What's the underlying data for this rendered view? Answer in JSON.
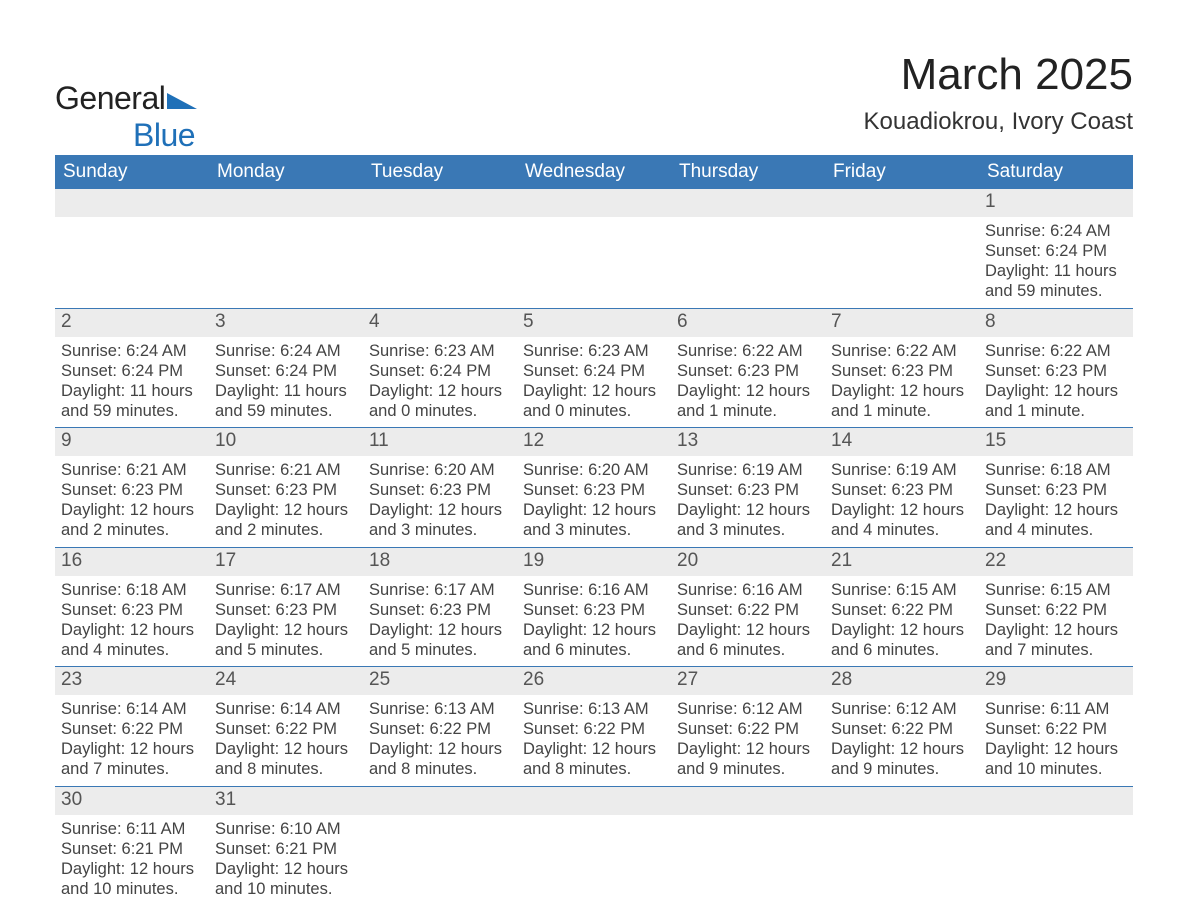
{
  "logo": {
    "word1": "General",
    "word2": "Blue"
  },
  "title": "March 2025",
  "subtitle": "Kouadiokrou, Ivory Coast",
  "colors": {
    "header_bg": "#3a78b5",
    "header_text": "#ffffff",
    "row_separator": "#3a78b5",
    "daynum_bg": "#ececec",
    "body_text": "#444444",
    "logo_blue": "#1f70b8",
    "page_bg": "#ffffff"
  },
  "typography": {
    "title_fontsize": 44,
    "subtitle_fontsize": 24,
    "weekday_fontsize": 19,
    "daynum_fontsize": 19,
    "detail_fontsize": 16.5
  },
  "weekdays": [
    "Sunday",
    "Monday",
    "Tuesday",
    "Wednesday",
    "Thursday",
    "Friday",
    "Saturday"
  ],
  "weeks": [
    [
      null,
      null,
      null,
      null,
      null,
      null,
      {
        "n": "1",
        "sr": "Sunrise: 6:24 AM",
        "ss": "Sunset: 6:24 PM",
        "d1": "Daylight: 11 hours",
        "d2": "and 59 minutes."
      }
    ],
    [
      {
        "n": "2",
        "sr": "Sunrise: 6:24 AM",
        "ss": "Sunset: 6:24 PM",
        "d1": "Daylight: 11 hours",
        "d2": "and 59 minutes."
      },
      {
        "n": "3",
        "sr": "Sunrise: 6:24 AM",
        "ss": "Sunset: 6:24 PM",
        "d1": "Daylight: 11 hours",
        "d2": "and 59 minutes."
      },
      {
        "n": "4",
        "sr": "Sunrise: 6:23 AM",
        "ss": "Sunset: 6:24 PM",
        "d1": "Daylight: 12 hours",
        "d2": "and 0 minutes."
      },
      {
        "n": "5",
        "sr": "Sunrise: 6:23 AM",
        "ss": "Sunset: 6:24 PM",
        "d1": "Daylight: 12 hours",
        "d2": "and 0 minutes."
      },
      {
        "n": "6",
        "sr": "Sunrise: 6:22 AM",
        "ss": "Sunset: 6:23 PM",
        "d1": "Daylight: 12 hours",
        "d2": "and 1 minute."
      },
      {
        "n": "7",
        "sr": "Sunrise: 6:22 AM",
        "ss": "Sunset: 6:23 PM",
        "d1": "Daylight: 12 hours",
        "d2": "and 1 minute."
      },
      {
        "n": "8",
        "sr": "Sunrise: 6:22 AM",
        "ss": "Sunset: 6:23 PM",
        "d1": "Daylight: 12 hours",
        "d2": "and 1 minute."
      }
    ],
    [
      {
        "n": "9",
        "sr": "Sunrise: 6:21 AM",
        "ss": "Sunset: 6:23 PM",
        "d1": "Daylight: 12 hours",
        "d2": "and 2 minutes."
      },
      {
        "n": "10",
        "sr": "Sunrise: 6:21 AM",
        "ss": "Sunset: 6:23 PM",
        "d1": "Daylight: 12 hours",
        "d2": "and 2 minutes."
      },
      {
        "n": "11",
        "sr": "Sunrise: 6:20 AM",
        "ss": "Sunset: 6:23 PM",
        "d1": "Daylight: 12 hours",
        "d2": "and 3 minutes."
      },
      {
        "n": "12",
        "sr": "Sunrise: 6:20 AM",
        "ss": "Sunset: 6:23 PM",
        "d1": "Daylight: 12 hours",
        "d2": "and 3 minutes."
      },
      {
        "n": "13",
        "sr": "Sunrise: 6:19 AM",
        "ss": "Sunset: 6:23 PM",
        "d1": "Daylight: 12 hours",
        "d2": "and 3 minutes."
      },
      {
        "n": "14",
        "sr": "Sunrise: 6:19 AM",
        "ss": "Sunset: 6:23 PM",
        "d1": "Daylight: 12 hours",
        "d2": "and 4 minutes."
      },
      {
        "n": "15",
        "sr": "Sunrise: 6:18 AM",
        "ss": "Sunset: 6:23 PM",
        "d1": "Daylight: 12 hours",
        "d2": "and 4 minutes."
      }
    ],
    [
      {
        "n": "16",
        "sr": "Sunrise: 6:18 AM",
        "ss": "Sunset: 6:23 PM",
        "d1": "Daylight: 12 hours",
        "d2": "and 4 minutes."
      },
      {
        "n": "17",
        "sr": "Sunrise: 6:17 AM",
        "ss": "Sunset: 6:23 PM",
        "d1": "Daylight: 12 hours",
        "d2": "and 5 minutes."
      },
      {
        "n": "18",
        "sr": "Sunrise: 6:17 AM",
        "ss": "Sunset: 6:23 PM",
        "d1": "Daylight: 12 hours",
        "d2": "and 5 minutes."
      },
      {
        "n": "19",
        "sr": "Sunrise: 6:16 AM",
        "ss": "Sunset: 6:23 PM",
        "d1": "Daylight: 12 hours",
        "d2": "and 6 minutes."
      },
      {
        "n": "20",
        "sr": "Sunrise: 6:16 AM",
        "ss": "Sunset: 6:22 PM",
        "d1": "Daylight: 12 hours",
        "d2": "and 6 minutes."
      },
      {
        "n": "21",
        "sr": "Sunrise: 6:15 AM",
        "ss": "Sunset: 6:22 PM",
        "d1": "Daylight: 12 hours",
        "d2": "and 6 minutes."
      },
      {
        "n": "22",
        "sr": "Sunrise: 6:15 AM",
        "ss": "Sunset: 6:22 PM",
        "d1": "Daylight: 12 hours",
        "d2": "and 7 minutes."
      }
    ],
    [
      {
        "n": "23",
        "sr": "Sunrise: 6:14 AM",
        "ss": "Sunset: 6:22 PM",
        "d1": "Daylight: 12 hours",
        "d2": "and 7 minutes."
      },
      {
        "n": "24",
        "sr": "Sunrise: 6:14 AM",
        "ss": "Sunset: 6:22 PM",
        "d1": "Daylight: 12 hours",
        "d2": "and 8 minutes."
      },
      {
        "n": "25",
        "sr": "Sunrise: 6:13 AM",
        "ss": "Sunset: 6:22 PM",
        "d1": "Daylight: 12 hours",
        "d2": "and 8 minutes."
      },
      {
        "n": "26",
        "sr": "Sunrise: 6:13 AM",
        "ss": "Sunset: 6:22 PM",
        "d1": "Daylight: 12 hours",
        "d2": "and 8 minutes."
      },
      {
        "n": "27",
        "sr": "Sunrise: 6:12 AM",
        "ss": "Sunset: 6:22 PM",
        "d1": "Daylight: 12 hours",
        "d2": "and 9 minutes."
      },
      {
        "n": "28",
        "sr": "Sunrise: 6:12 AM",
        "ss": "Sunset: 6:22 PM",
        "d1": "Daylight: 12 hours",
        "d2": "and 9 minutes."
      },
      {
        "n": "29",
        "sr": "Sunrise: 6:11 AM",
        "ss": "Sunset: 6:22 PM",
        "d1": "Daylight: 12 hours",
        "d2": "and 10 minutes."
      }
    ],
    [
      {
        "n": "30",
        "sr": "Sunrise: 6:11 AM",
        "ss": "Sunset: 6:21 PM",
        "d1": "Daylight: 12 hours",
        "d2": "and 10 minutes."
      },
      {
        "n": "31",
        "sr": "Sunrise: 6:10 AM",
        "ss": "Sunset: 6:21 PM",
        "d1": "Daylight: 12 hours",
        "d2": "and 10 minutes."
      },
      null,
      null,
      null,
      null,
      null
    ]
  ]
}
